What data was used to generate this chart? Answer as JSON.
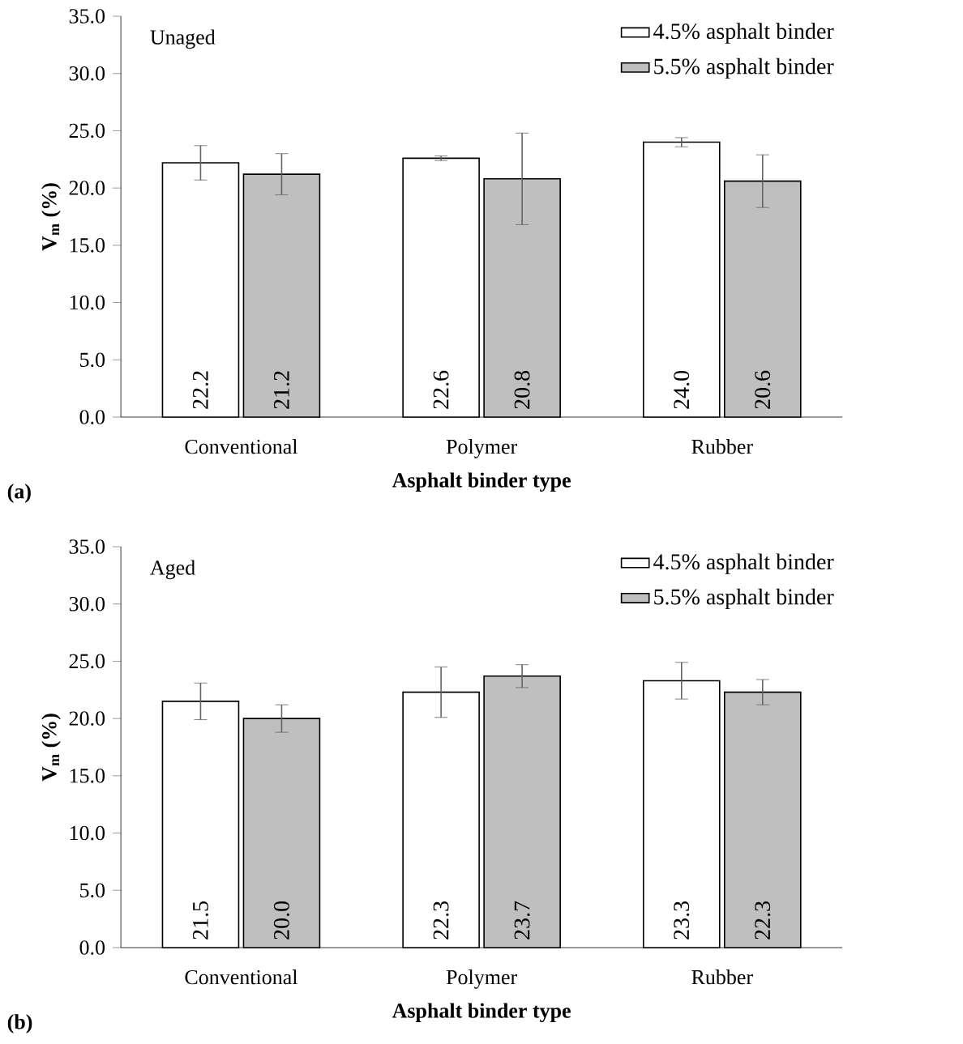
{
  "chart_data": [
    {
      "type": "bar",
      "title": "Unaged",
      "xlabel": "Asphalt binder type",
      "ylabel": "V$_{m}$ (%)",
      "annotations": [
        "(a)"
      ],
      "categories": [
        "Conventional",
        "Polymer",
        "Rubber"
      ],
      "series": [
        {
          "name": "4.5% asphalt binder",
          "color": "#ffffff",
          "values": [
            22.2,
            22.6,
            24.0
          ],
          "errors": [
            1.5,
            0.2,
            0.4
          ],
          "value_labels": [
            "22.2",
            "22.6",
            "24.0"
          ]
        },
        {
          "name": "5.5% asphalt binder",
          "color": "#bfbfbf",
          "values": [
            21.2,
            20.8,
            20.6
          ],
          "errors": [
            1.8,
            4.0,
            2.3
          ],
          "value_labels": [
            "21.2",
            "20.8",
            "20.6"
          ]
        }
      ],
      "ylim": [
        0,
        35
      ],
      "yticks": [
        {
          "value": 0,
          "label": "0.0"
        },
        {
          "value": 5,
          "label": "5.0"
        },
        {
          "value": 10,
          "label": "10.0"
        },
        {
          "value": 15,
          "label": "15.0"
        },
        {
          "value": 20,
          "label": "20.0"
        },
        {
          "value": 25,
          "label": "25.0"
        },
        {
          "value": 30,
          "label": "30.0"
        },
        {
          "value": 35,
          "label": "35.0"
        }
      ],
      "legend": "top right",
      "grid": false
    },
    {
      "type": "bar",
      "title": "Aged",
      "xlabel": "Asphalt binder type",
      "ylabel": "V$_{m}$ (%)",
      "annotations": [
        "(b)"
      ],
      "categories": [
        "Conventional",
        "Polymer",
        "Rubber"
      ],
      "series": [
        {
          "name": "4.5% asphalt binder",
          "color": "#ffffff",
          "values": [
            21.5,
            22.3,
            23.3
          ],
          "errors": [
            1.6,
            2.2,
            1.6
          ],
          "value_labels": [
            "21.5",
            "22.3",
            "23.3"
          ]
        },
        {
          "name": "5.5% asphalt binder",
          "color": "#bfbfbf",
          "values": [
            20.0,
            23.7,
            22.3
          ],
          "errors": [
            1.2,
            1.0,
            1.1
          ],
          "value_labels": [
            "20.0",
            "23.7",
            "22.3"
          ]
        }
      ],
      "ylim": [
        0,
        35
      ],
      "yticks": [
        {
          "value": 0,
          "label": "0.0"
        },
        {
          "value": 5,
          "label": "5.0"
        },
        {
          "value": 10,
          "label": "10.0"
        },
        {
          "value": 15,
          "label": "15.0"
        },
        {
          "value": 20,
          "label": "20.0"
        },
        {
          "value": 25,
          "label": "25.0"
        },
        {
          "value": 30,
          "label": "30.0"
        },
        {
          "value": 35,
          "label": "35.0"
        }
      ],
      "legend": "top right",
      "grid": false
    }
  ]
}
